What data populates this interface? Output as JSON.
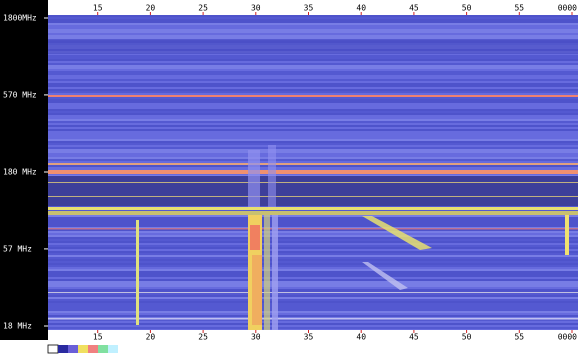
{
  "chart_data": {
    "type": "spectrogram",
    "xlim": [
      10,
      60
    ],
    "xticks": [
      15,
      20,
      25,
      30,
      35,
      40,
      45,
      50,
      55,
      {
        "value": 60,
        "label": "0000"
      }
    ],
    "ylim": [
      18,
      1800
    ],
    "log_y": true,
    "yticks": [
      {
        "value": 18,
        "label": "18 MHz"
      },
      {
        "value": 57,
        "label": "57 MHz"
      },
      {
        "value": 180,
        "label": "180 MHz"
      },
      {
        "value": 570,
        "label": "570 MHz"
      },
      {
        "value": 1800,
        "label": "1800MHz"
      }
    ]
  }
}
